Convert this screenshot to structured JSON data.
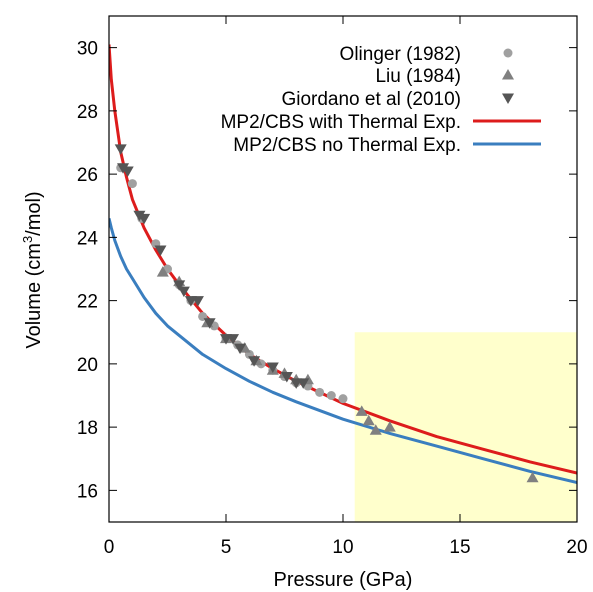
{
  "chart_data": {
    "type": "scatter",
    "xlabel": "Pressure (GPa)",
    "ylabel_main": "Volume (cm",
    "ylabel_sup": "3",
    "ylabel_tail": "/mol)",
    "xlim": [
      0,
      20
    ],
    "ylim": [
      15,
      31
    ],
    "xticks": [
      "0",
      "5",
      "10",
      "15",
      "20"
    ],
    "yticks": [
      "16",
      "18",
      "20",
      "22",
      "24",
      "26",
      "28",
      "30"
    ],
    "grid": false,
    "legend_position": "top-right",
    "highlight_region": {
      "x": [
        10.5,
        20
      ],
      "y": [
        15,
        21
      ],
      "color": "#ffffcc"
    },
    "series": [
      {
        "name": "Olinger (1982)",
        "kind": "points",
        "marker": "circle",
        "color": "#a0a0a0",
        "x": [
          0.5,
          1.0,
          1.4,
          2.0,
          2.5,
          3.0,
          3.5,
          4.0,
          4.5,
          5.0,
          5.5,
          6.0,
          6.5,
          7.0,
          7.5,
          8.0,
          8.5,
          9.0,
          9.5,
          10.0
        ],
        "y": [
          26.2,
          25.7,
          24.6,
          23.8,
          23.0,
          22.5,
          22.0,
          21.5,
          21.2,
          20.8,
          20.6,
          20.3,
          20.0,
          19.8,
          19.6,
          19.4,
          19.3,
          19.1,
          19.0,
          18.9
        ]
      },
      {
        "name": "Liu (1984)",
        "kind": "points",
        "marker": "triangle-up",
        "color": "#808080",
        "x": [
          2.3,
          3.0,
          4.2,
          5.0,
          5.8,
          6.3,
          7.0,
          7.5,
          8.0,
          8.5,
          10.8,
          11.1,
          11.4,
          12.0,
          18.1
        ],
        "y": [
          22.9,
          22.6,
          21.3,
          20.8,
          20.5,
          20.1,
          19.8,
          19.7,
          19.5,
          19.5,
          18.5,
          18.2,
          17.9,
          18.0,
          16.4
        ]
      },
      {
        "name": "Giordano et al (2010)",
        "kind": "points",
        "marker": "triangle-down",
        "color": "#555555",
        "x": [
          0.5,
          0.6,
          0.8,
          1.3,
          1.5,
          2.2,
          3.0,
          3.2,
          3.5,
          3.8,
          4.3,
          5.0,
          5.3,
          5.6,
          6.2,
          7.0,
          7.6,
          8.0,
          8.3
        ],
        "y": [
          26.8,
          26.2,
          26.1,
          24.7,
          24.6,
          23.6,
          22.5,
          22.3,
          22.0,
          22.0,
          21.3,
          20.8,
          20.8,
          20.5,
          20.1,
          19.9,
          19.6,
          19.4,
          19.4
        ]
      },
      {
        "name": "MP2/CBS with Thermal Exp.",
        "kind": "line",
        "color": "#dd1c1c",
        "x": [
          0,
          0.1,
          0.25,
          0.5,
          0.75,
          1,
          1.5,
          2,
          2.5,
          3,
          4,
          5,
          6,
          7,
          8,
          10,
          12,
          14,
          16,
          18,
          20
        ],
        "y": [
          30.1,
          29.0,
          28.0,
          26.7,
          25.9,
          25.2,
          24.3,
          23.6,
          23.0,
          22.5,
          21.6,
          20.9,
          20.3,
          19.85,
          19.45,
          18.75,
          18.2,
          17.7,
          17.3,
          16.9,
          16.55
        ]
      },
      {
        "name": "MP2/CBS no Thermal Exp.",
        "kind": "line",
        "color": "#3a7ebf",
        "x": [
          0,
          0.1,
          0.25,
          0.5,
          0.75,
          1,
          1.5,
          2,
          2.5,
          3,
          4,
          5,
          6,
          7,
          8,
          10,
          12,
          14,
          16,
          18,
          20
        ],
        "y": [
          24.6,
          24.3,
          23.9,
          23.4,
          23.0,
          22.7,
          22.1,
          21.6,
          21.2,
          20.9,
          20.3,
          19.85,
          19.45,
          19.1,
          18.8,
          18.25,
          17.8,
          17.4,
          17.0,
          16.6,
          16.25
        ]
      }
    ]
  }
}
